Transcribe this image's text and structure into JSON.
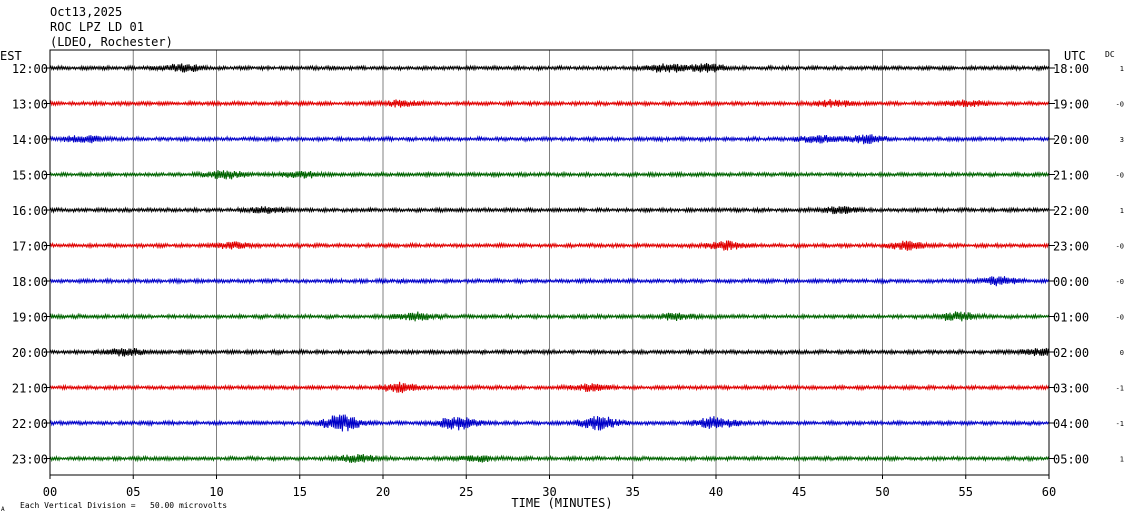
{
  "header": {
    "date": "Oct13,2025",
    "station": "ROC LPZ LD 01",
    "network": "(LDEO, Rochester)"
  },
  "footer": {
    "xlabel": "TIME (MINUTES)",
    "scale_note": "Each Vertical Division =   50.00 microvolts",
    "corner_mark": "A"
  },
  "chart_data": {
    "type": "line",
    "xlabel": "TIME (MINUTES)",
    "xlim": [
      0,
      60
    ],
    "x_ticks": [
      "00",
      "05",
      "10",
      "15",
      "20",
      "25",
      "30",
      "35",
      "40",
      "45",
      "50",
      "55",
      "60"
    ],
    "grid": true,
    "left_axis_title": "EST",
    "right_axis_title": "UTC",
    "dc_title": "DC",
    "scale_microvolts_per_division": 50.0,
    "series_colors": [
      "#000000",
      "#e00000",
      "#0000c8",
      "#006400"
    ],
    "traces": [
      {
        "est": "12:00",
        "utc": "18:00",
        "dc": "1",
        "color": "#000000",
        "activity": [
          [
            8,
            1.2
          ],
          [
            37,
            1.4
          ],
          [
            39.5,
            1.3
          ]
        ]
      },
      {
        "est": "13:00",
        "utc": "19:00",
        "dc": "-0",
        "color": "#e00000",
        "activity": [
          [
            21,
            0.9
          ],
          [
            47,
            1.0
          ],
          [
            55,
            1.0
          ]
        ]
      },
      {
        "est": "14:00",
        "utc": "20:00",
        "dc": "3",
        "color": "#0000c8",
        "activity": [
          [
            2,
            1.1
          ],
          [
            46,
            1.2
          ],
          [
            49,
            1.3
          ]
        ]
      },
      {
        "est": "15:00",
        "utc": "21:00",
        "dc": "-0",
        "color": "#006400",
        "activity": [
          [
            10.5,
            1.4
          ],
          [
            15,
            1.1
          ]
        ]
      },
      {
        "est": "16:00",
        "utc": "22:00",
        "dc": "1",
        "color": "#000000",
        "activity": [
          [
            13,
            0.9
          ],
          [
            47.5,
            1.0
          ]
        ]
      },
      {
        "est": "17:00",
        "utc": "23:00",
        "dc": "-0",
        "color": "#e00000",
        "activity": [
          [
            11,
            1.0
          ],
          [
            40.5,
            1.3
          ],
          [
            51.5,
            1.4
          ]
        ]
      },
      {
        "est": "18:00",
        "utc": "00:00",
        "dc": "-0",
        "color": "#0000c8",
        "activity": [
          [
            57,
            1.3
          ]
        ]
      },
      {
        "est": "19:00",
        "utc": "01:00",
        "dc": "-0",
        "color": "#006400",
        "activity": [
          [
            22,
            1.3
          ],
          [
            37.5,
            1.0
          ],
          [
            54.5,
            1.4
          ]
        ]
      },
      {
        "est": "20:00",
        "utc": "02:00",
        "dc": "0",
        "color": "#000000",
        "activity": [
          [
            4.5,
            1.2
          ],
          [
            59.5,
            1.0
          ]
        ]
      },
      {
        "est": "21:00",
        "utc": "03:00",
        "dc": "-1",
        "color": "#e00000",
        "activity": [
          [
            21,
            1.5
          ],
          [
            32.5,
            1.0
          ]
        ]
      },
      {
        "est": "22:00",
        "utc": "04:00",
        "dc": "-1",
        "color": "#0000c8",
        "activity": [
          [
            17.5,
            2.8
          ],
          [
            24.5,
            2.2
          ],
          [
            33,
            2.3
          ],
          [
            40,
            2.0
          ]
        ]
      },
      {
        "est": "23:00",
        "utc": "05:00",
        "dc": "1",
        "color": "#006400",
        "activity": [
          [
            18.5,
            1.2
          ],
          [
            25.5,
            1.0
          ]
        ]
      }
    ]
  }
}
